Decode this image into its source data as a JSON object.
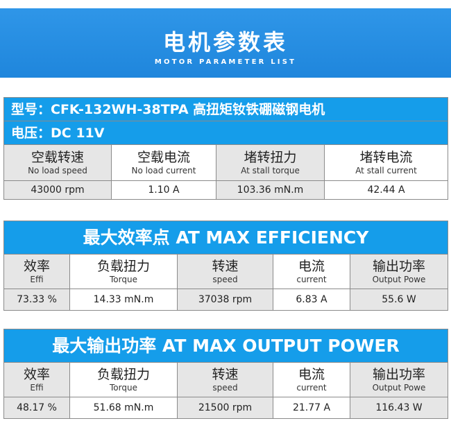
{
  "header": {
    "title": "电机参数表",
    "subtitle": "MOTOR PARAMETER LIST"
  },
  "model": {
    "label": "型号：CFK-132WH-38TPA  高扭矩钕铁硼磁钢电机",
    "voltage": "电压：DC 11V"
  },
  "basic_params": {
    "columns": [
      {
        "zh": "空载转速",
        "en": "No load speed",
        "value": "43000 rpm"
      },
      {
        "zh": "空载电流",
        "en": "No load current",
        "value": "1.10  A"
      },
      {
        "zh": "堵转扭力",
        "en": "At stall torque",
        "value": "103.36 mN.m"
      },
      {
        "zh": "堵转电流",
        "en": "At stall current",
        "value": "42.44 A"
      }
    ]
  },
  "max_efficiency": {
    "title": "最大效率点  AT MAX EFFICIENCY",
    "columns": [
      {
        "zh": "效率",
        "en": "Effi",
        "value": "73.33 %"
      },
      {
        "zh": "负载扭力",
        "en": "Torque",
        "value": "14.33 mN.m"
      },
      {
        "zh": "转速",
        "en": "speed",
        "value": "37038 rpm"
      },
      {
        "zh": "电流",
        "en": "current",
        "value": "6.83 A"
      },
      {
        "zh": "输出功率",
        "en": "Output Powe",
        "value": "55.6 W"
      }
    ]
  },
  "max_power": {
    "title": "最大输出功率  AT MAX OUTPUT POWER",
    "columns": [
      {
        "zh": "效率",
        "en": "Effi",
        "value": "48.17 %"
      },
      {
        "zh": "负载扭力",
        "en": "Torque",
        "value": "51.68 mN.m"
      },
      {
        "zh": "转速",
        "en": "speed",
        "value": "21500 rpm"
      },
      {
        "zh": "电流",
        "en": "current",
        "value": "21.77 A"
      },
      {
        "zh": "输出功率",
        "en": "Output Powe",
        "value": "116.43 W"
      }
    ]
  },
  "colors": {
    "banner": "#1f86dc",
    "bar": "#159dea",
    "shade": "#e6e6e6",
    "border": "#8a8a8a"
  }
}
